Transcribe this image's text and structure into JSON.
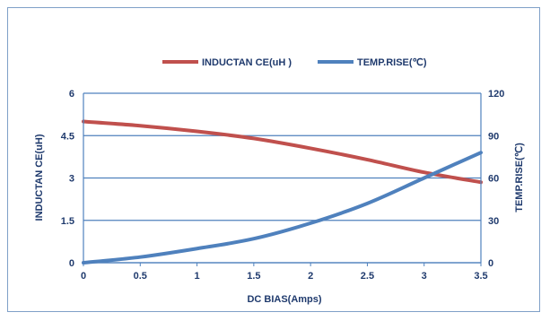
{
  "chart_data": {
    "type": "line",
    "title": "",
    "xlabel": "DC BIAS(Amps)",
    "ylabel": "INDUCTAN CE(uH)",
    "y2label": "TEMP.RISE(℃)",
    "xlim": [
      0,
      3.5
    ],
    "ylim": [
      0,
      6
    ],
    "y2lim": [
      0,
      120
    ],
    "x_ticks": [
      "0",
      "0.5",
      "1",
      "1.5",
      "2",
      "2.5",
      "3",
      "3.5"
    ],
    "y_ticks": [
      "0",
      "1.5",
      "3",
      "4.5",
      "6"
    ],
    "y2_ticks": [
      "0",
      "30",
      "60",
      "90",
      "120"
    ],
    "grid": "horizontal",
    "legend_position": "top",
    "series": [
      {
        "name": "INDUCTAN CE(uH )",
        "axis": "left",
        "color": "#c0504d",
        "x": [
          0,
          0.5,
          1,
          1.5,
          2,
          2.5,
          3,
          3.5
        ],
        "values": [
          5.0,
          4.85,
          4.65,
          4.4,
          4.05,
          3.65,
          3.2,
          2.85
        ]
      },
      {
        "name": "TEMP.RISE(℃)",
        "axis": "right",
        "color": "#4f81bd",
        "x": [
          0,
          0.5,
          1,
          1.5,
          2,
          2.5,
          3,
          3.5
        ],
        "values": [
          0,
          4,
          10,
          17,
          28,
          42,
          60,
          78
        ]
      }
    ]
  }
}
